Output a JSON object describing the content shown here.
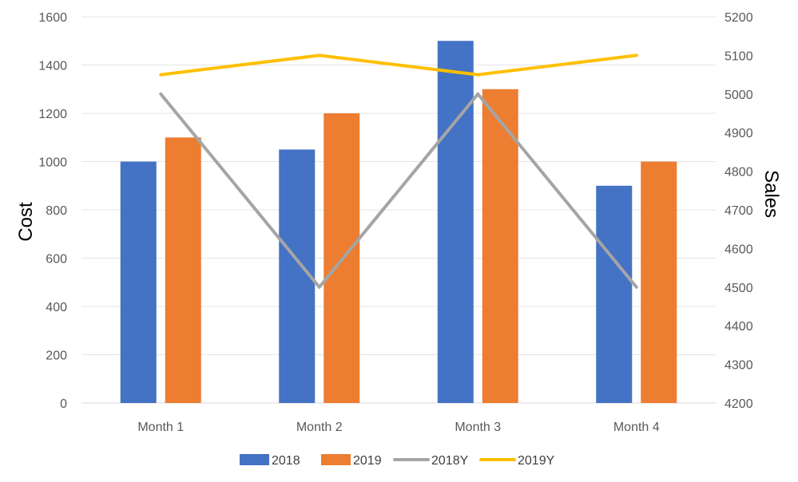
{
  "chart_data": {
    "type": "bar",
    "categories": [
      "Month 1",
      "Month 2",
      "Month 3",
      "Month 4"
    ],
    "bar_series": [
      {
        "name": "2018",
        "color": "#4472C4",
        "values": [
          1000,
          1050,
          1500,
          900
        ]
      },
      {
        "name": "2019",
        "color": "#ED7D31",
        "values": [
          1100,
          1200,
          1300,
          1000
        ]
      }
    ],
    "line_series": [
      {
        "name": "2018Y",
        "color": "#A5A5A5",
        "axis": "secondary",
        "values": [
          5000,
          4500,
          5000,
          4500
        ]
      },
      {
        "name": "2019Y",
        "color": "#FFC000",
        "axis": "secondary",
        "values": [
          5050,
          5100,
          5050,
          5100
        ]
      }
    ],
    "ylabel": "Cost",
    "y2label": "Sales",
    "ylim": [
      0,
      1600
    ],
    "y2lim": [
      4200,
      5200
    ],
    "yticks": [
      "0",
      "200",
      "400",
      "600",
      "800",
      "1000",
      "1200",
      "1400",
      "1600"
    ],
    "y2ticks": [
      "4200",
      "4300",
      "4400",
      "4500",
      "4600",
      "4700",
      "4800",
      "4900",
      "5000",
      "5100",
      "5200"
    ],
    "grid": true,
    "legend_position": "bottom",
    "legend": [
      "2018",
      "2019",
      "2018Y",
      "2019Y"
    ]
  }
}
